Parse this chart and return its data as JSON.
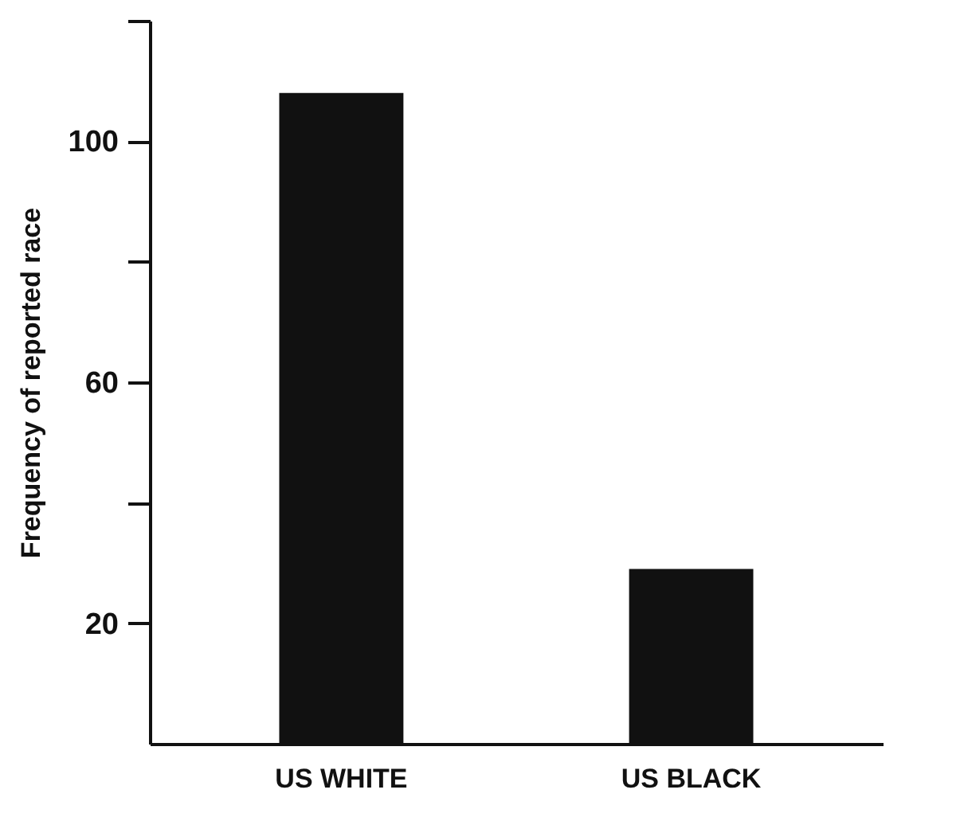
{
  "chart_data": {
    "type": "bar",
    "ylabel": "Frequency of reported race",
    "categories": [
      "US WHITE",
      "US BLACK"
    ],
    "values": [
      108,
      29
    ],
    "color": "#111111",
    "ylim": [
      0,
      120
    ],
    "yticks": [
      {
        "value": 40,
        "label": null
      },
      {
        "value": 80,
        "label": null
      },
      {
        "value": 120,
        "label": null
      },
      20,
      60,
      100
    ],
    "grid": false
  }
}
